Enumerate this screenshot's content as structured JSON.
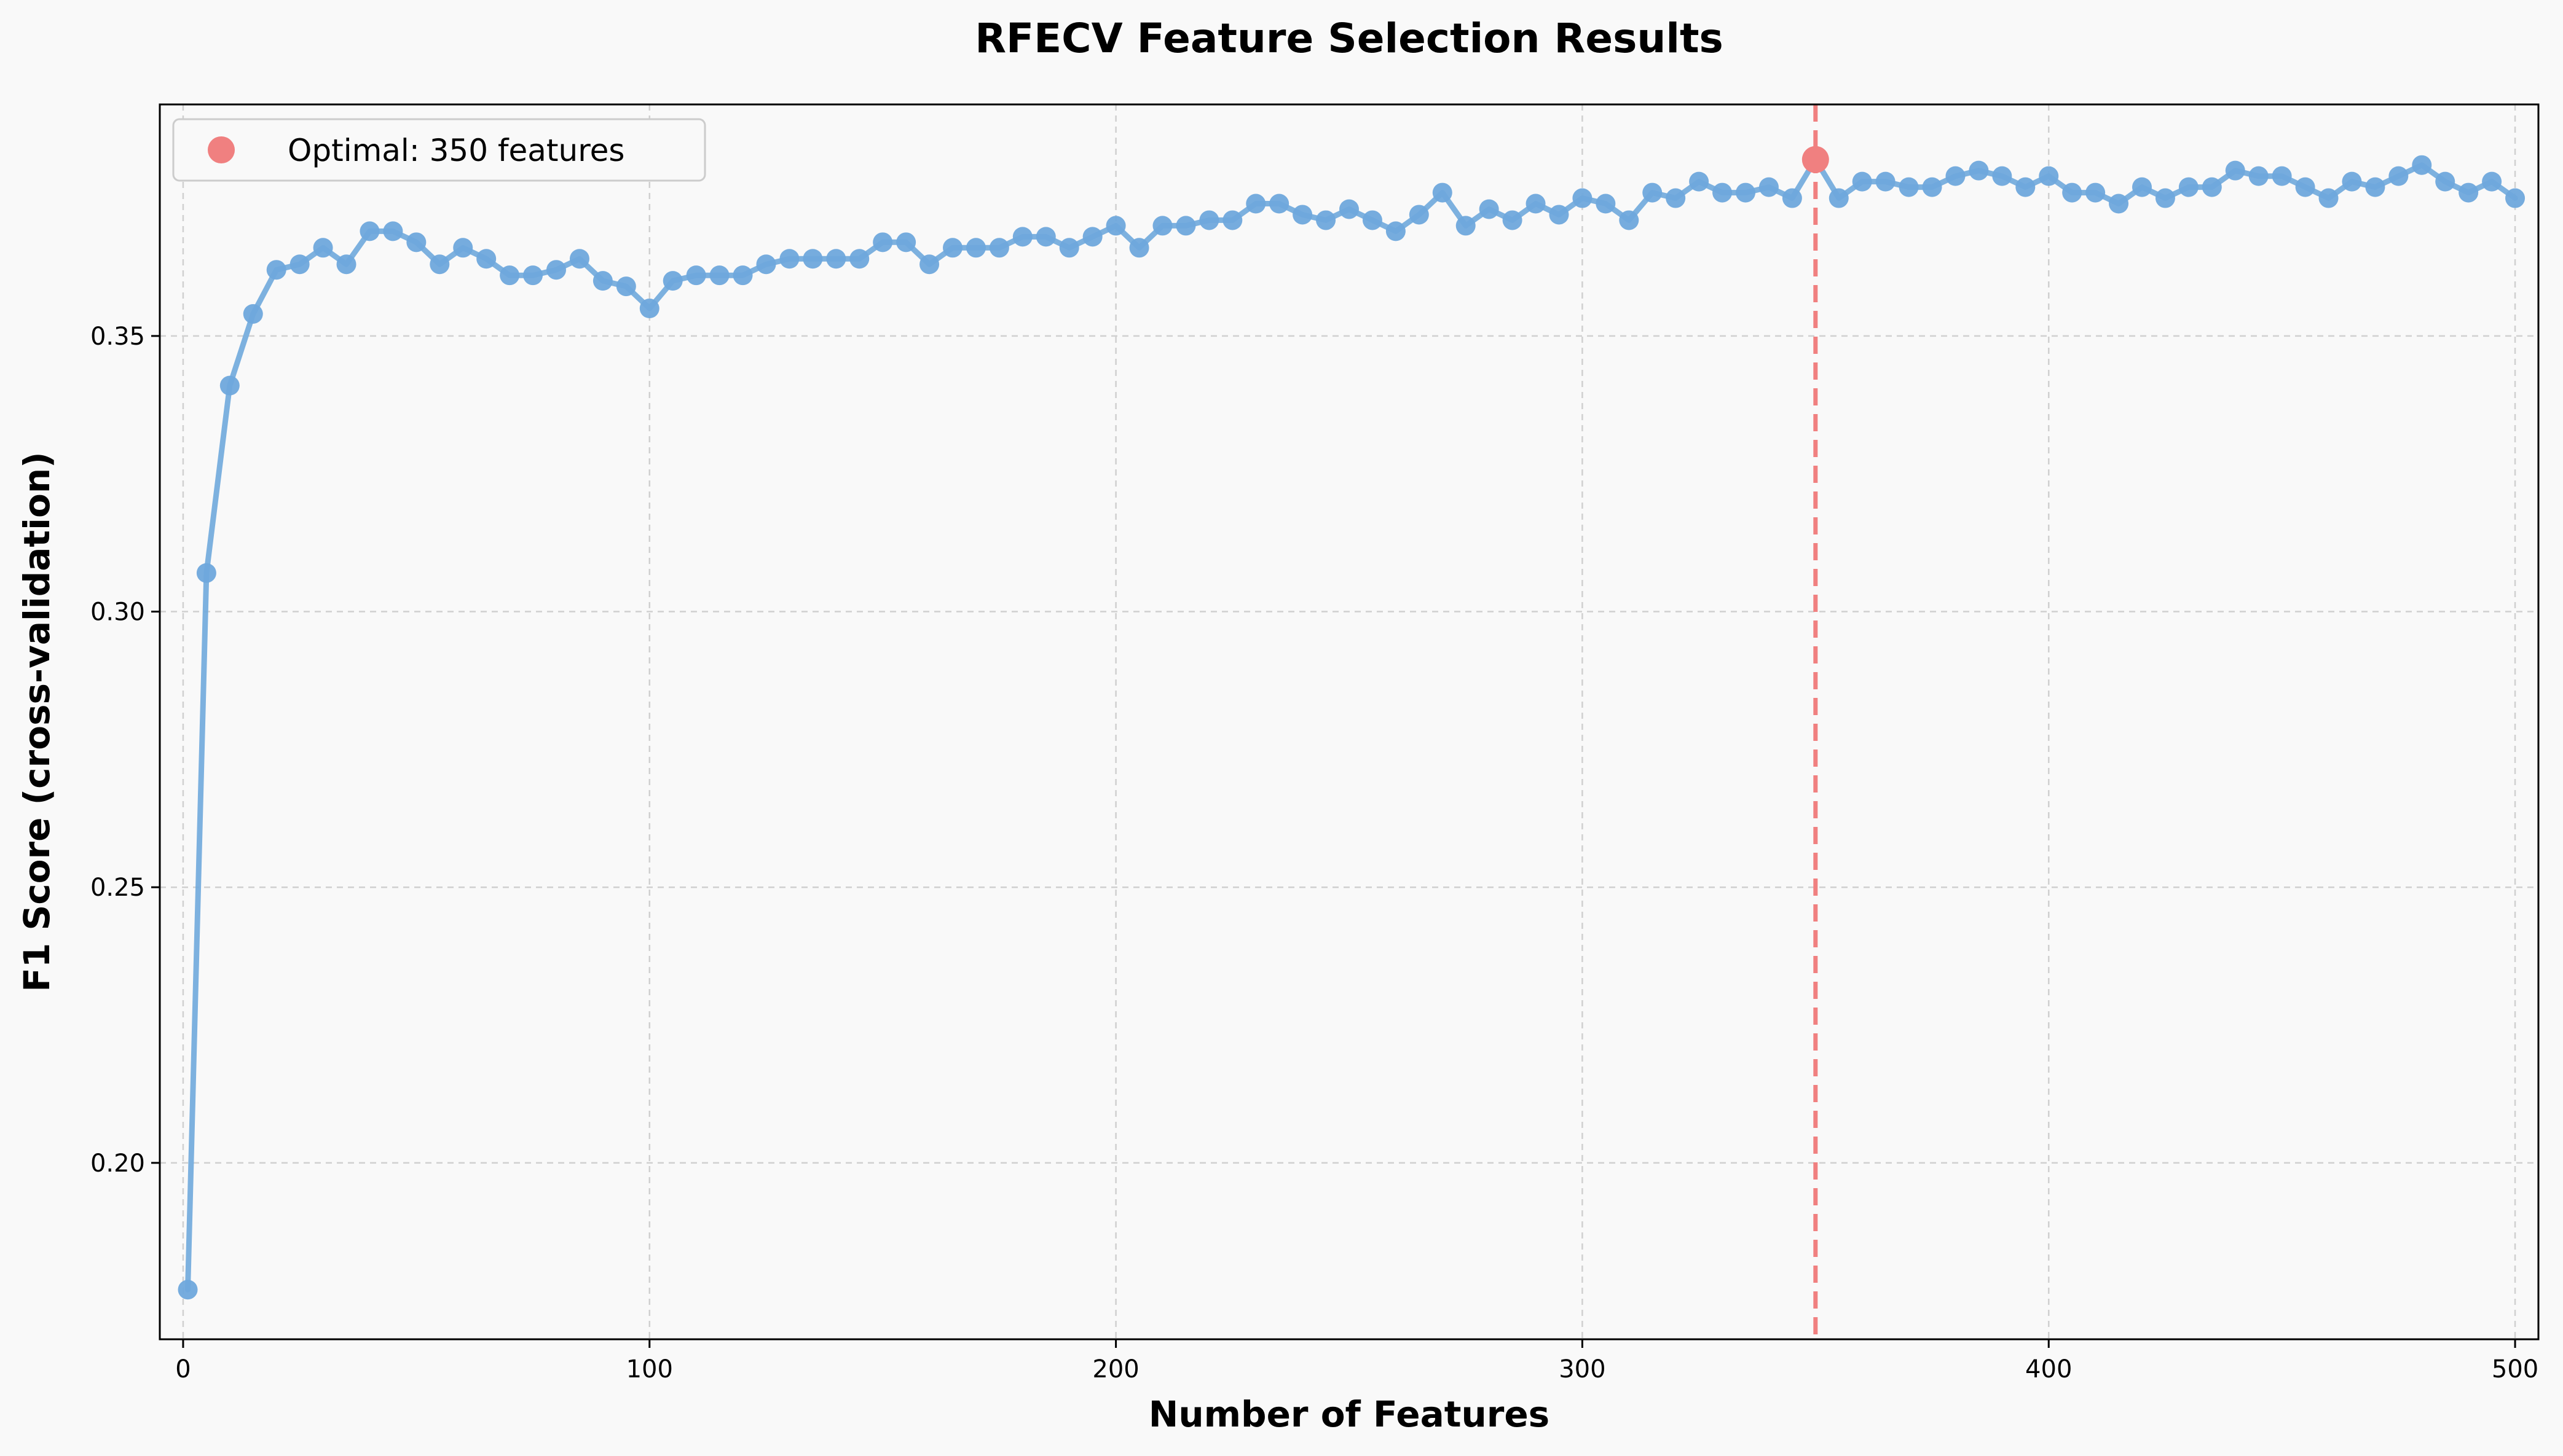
{
  "chart_data": {
    "type": "line",
    "title": "RFECV Feature Selection Results",
    "xlabel": "Number of Features",
    "ylabel": "F1 Score (cross-validation)",
    "xlim": [
      -5,
      505
    ],
    "ylim": [
      0.168,
      0.392
    ],
    "xticks": [
      0,
      100,
      200,
      300,
      400,
      500
    ],
    "yticks": [
      0.2,
      0.25,
      0.3,
      0.35
    ],
    "xtick_labels": [
      "0",
      "100",
      "200",
      "300",
      "400",
      "500"
    ],
    "ytick_labels": [
      "0.20",
      "0.25",
      "0.30",
      "0.35"
    ],
    "grid": true,
    "legend_position": "top-left",
    "series": [
      {
        "x": [
          1,
          5,
          10,
          15,
          20,
          25,
          30,
          35,
          40,
          45,
          50,
          55,
          60,
          65,
          70,
          75,
          80,
          85,
          90,
          95,
          100,
          105,
          110,
          115,
          120,
          125,
          130,
          135,
          140,
          145,
          150,
          155,
          160,
          165,
          170,
          175,
          180,
          185,
          190,
          195,
          200,
          205,
          210,
          215,
          220,
          225,
          230,
          235,
          240,
          245,
          250,
          255,
          260,
          265,
          270,
          275,
          280,
          285,
          290,
          295,
          300,
          305,
          310,
          315,
          320,
          325,
          330,
          335,
          340,
          345,
          350,
          355,
          360,
          365,
          370,
          375,
          380,
          385,
          390,
          395,
          400,
          405,
          410,
          415,
          420,
          425,
          430,
          435,
          440,
          445,
          450,
          455,
          460,
          465,
          470,
          475,
          480,
          485,
          490,
          495,
          500
        ],
        "values": [
          0.177,
          0.307,
          0.341,
          0.354,
          0.362,
          0.363,
          0.366,
          0.363,
          0.369,
          0.369,
          0.367,
          0.363,
          0.366,
          0.364,
          0.361,
          0.361,
          0.362,
          0.364,
          0.36,
          0.359,
          0.355,
          0.36,
          0.361,
          0.361,
          0.361,
          0.363,
          0.364,
          0.364,
          0.364,
          0.364,
          0.367,
          0.367,
          0.363,
          0.366,
          0.366,
          0.366,
          0.368,
          0.368,
          0.366,
          0.368,
          0.37,
          0.366,
          0.37,
          0.37,
          0.371,
          0.371,
          0.374,
          0.374,
          0.372,
          0.371,
          0.373,
          0.371,
          0.369,
          0.372,
          0.376,
          0.37,
          0.373,
          0.371,
          0.374,
          0.372,
          0.375,
          0.374,
          0.371,
          0.376,
          0.375,
          0.378,
          0.376,
          0.376,
          0.377,
          0.375,
          0.382,
          0.375,
          0.378,
          0.378,
          0.377,
          0.377,
          0.379,
          0.38,
          0.379,
          0.377,
          0.379,
          0.376,
          0.376,
          0.374,
          0.377,
          0.375,
          0.377,
          0.377,
          0.38,
          0.379,
          0.379,
          0.377,
          0.375,
          0.378,
          0.377,
          0.379,
          0.381,
          0.378,
          0.376,
          0.378,
          0.375
        ],
        "color": "#6fa8dc"
      }
    ],
    "highlight": {
      "label": "Optimal: 350 features",
      "x": 350,
      "y": 0.382,
      "color": "#f08080"
    }
  }
}
